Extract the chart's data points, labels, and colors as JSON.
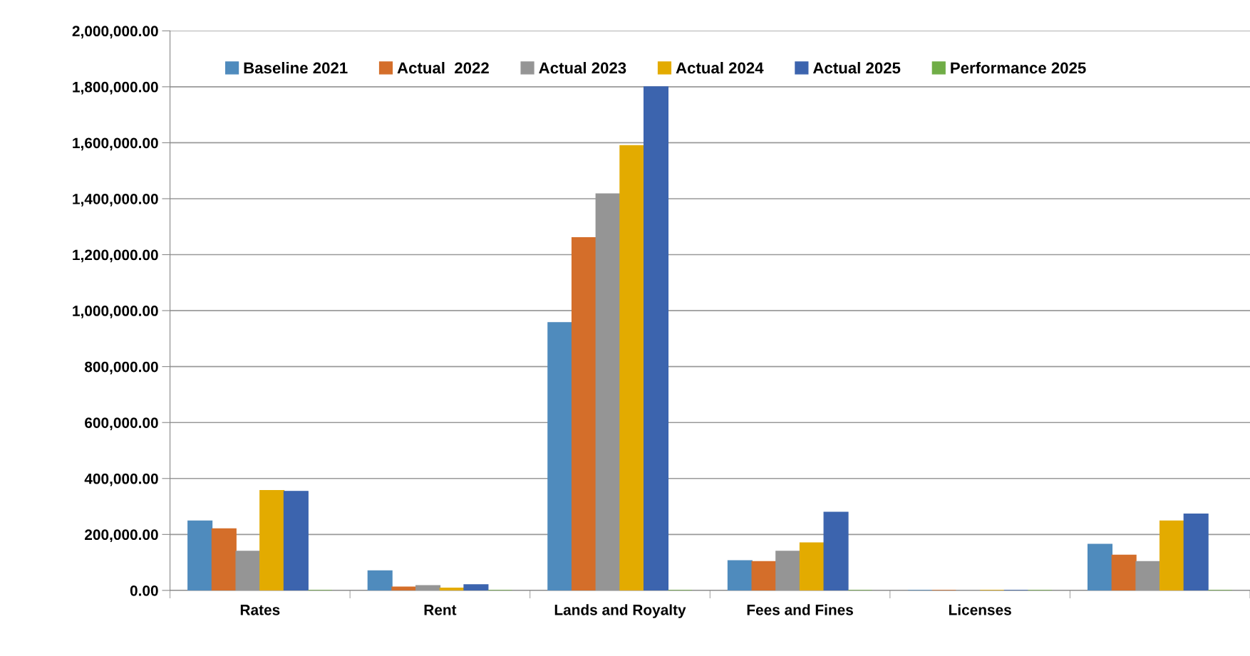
{
  "chart_data": {
    "type": "bar",
    "categories": [
      "Rates",
      "Rent",
      "Lands and Royalty",
      "Fees and Fines",
      "Licenses",
      null
    ],
    "series": [
      {
        "name": "Baseline 2021",
        "color": "#4f8bbd",
        "values": [
          248000,
          70000,
          957000,
          106000,
          0,
          165000
        ]
      },
      {
        "name": "Actual  2022",
        "color": "#d46e2a",
        "values": [
          220000,
          12000,
          1261000,
          103000,
          0,
          126000
        ]
      },
      {
        "name": "Actual 2023",
        "color": "#959595",
        "values": [
          140000,
          17000,
          1417000,
          140000,
          0,
          103000
        ]
      },
      {
        "name": "Actual 2024",
        "color": "#e3ab00",
        "values": [
          357000,
          8000,
          1590000,
          170000,
          0,
          248000
        ]
      },
      {
        "name": "Actual 2025",
        "color": "#3c64ae",
        "values": [
          354000,
          20000,
          1800000,
          279000,
          0,
          273000
        ]
      },
      {
        "name": "Performance 2025",
        "color": "#70ad47",
        "values": [
          0,
          0,
          0,
          0,
          0,
          0
        ]
      }
    ],
    "ylim": [
      0,
      2000000
    ],
    "yticks": [
      {
        "value": 0,
        "label": "0.00"
      },
      {
        "value": 200000,
        "label": "200,000.00"
      },
      {
        "value": 400000,
        "label": "400,000.00"
      },
      {
        "value": 600000,
        "label": "600,000.00"
      },
      {
        "value": 800000,
        "label": "800,000.00"
      },
      {
        "value": 1000000,
        "label": "1,000,000.00"
      },
      {
        "value": 1200000,
        "label": "1,200,000.00"
      },
      {
        "value": 1400000,
        "label": "1,400,000.00"
      },
      {
        "value": 1600000,
        "label": "1,600,000.00"
      },
      {
        "value": 1800000,
        "label": "1,800,000.00"
      },
      {
        "value": 2000000,
        "label": "2,000,000.00"
      }
    ],
    "grid": "y",
    "legend": "top"
  }
}
